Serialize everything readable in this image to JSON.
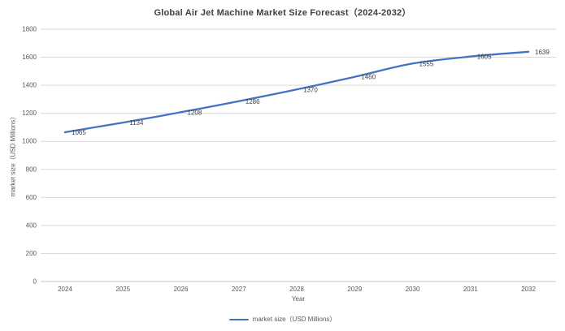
{
  "chart_data": {
    "type": "line",
    "title": "Global Air Jet Machine Market Size Forecast（2024-2032）",
    "categories": [
      "2024",
      "2025",
      "2026",
      "2027",
      "2028",
      "2029",
      "2030",
      "2031",
      "2032"
    ],
    "series": [
      {
        "name": "market size（USD Millions）",
        "values": [
          1065,
          1134,
          1208,
          1286,
          1370,
          1460,
          1555,
          1605,
          1639
        ],
        "color": "#4472C4"
      }
    ],
    "xlabel": "Year",
    "ylabel": "market size（USD Millions）",
    "ylim": [
      0,
      1800
    ],
    "ytick_step": 200,
    "yticks": [
      0,
      200,
      400,
      600,
      800,
      1000,
      1200,
      1400,
      1600,
      1800
    ],
    "grid": true,
    "smooth": true,
    "data_labels": true,
    "legend_position": "bottom",
    "colors": {
      "background": "#FFFFFF",
      "line": "#4472C4",
      "gridline": "#D9D9D9",
      "axis_line": "#C6C6C6",
      "tick_text": "#595959",
      "axis_title_text": "#595959",
      "data_label_text": "#404040",
      "title_text": "#404040"
    }
  }
}
